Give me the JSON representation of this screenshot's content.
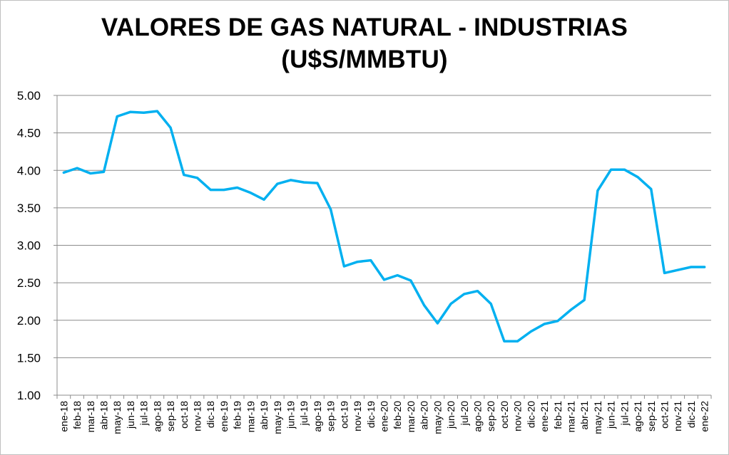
{
  "chart_data": {
    "type": "line",
    "title": "VALORES DE GAS NATURAL - INDUSTRIAS",
    "subtitle": "(U$S/MMBTU)",
    "xlabel": "",
    "ylabel": "",
    "ylim": [
      1.0,
      5.0
    ],
    "ytick_step": 0.5,
    "yticks": [
      "1.00",
      "1.50",
      "2.00",
      "2.50",
      "3.00",
      "3.50",
      "4.00",
      "4.50",
      "5.00"
    ],
    "grid": true,
    "legend": "none",
    "line_color": "#00b0f0",
    "categories": [
      "ene-18",
      "feb-18",
      "mar-18",
      "abr-18",
      "may-18",
      "jun-18",
      "jul-18",
      "ago-18",
      "sep-18",
      "oct-18",
      "nov-18",
      "dic-18",
      "ene-19",
      "feb-19",
      "mar-19",
      "abr-19",
      "may-19",
      "jun-19",
      "jul-19",
      "ago-19",
      "sep-19",
      "oct-19",
      "nov-19",
      "dic-19",
      "ene-20",
      "feb-20",
      "mar-20",
      "abr-20",
      "may-20",
      "jun-20",
      "jul-20",
      "ago-20",
      "sep-20",
      "oct-20",
      "nov-20",
      "dic-20",
      "ene-21",
      "feb-21",
      "mar-21",
      "abr-21",
      "may-21",
      "jun-21",
      "jul-21",
      "ago-21",
      "sep-21",
      "oct-21",
      "nov-21",
      "dic-21",
      "ene-22"
    ],
    "values": [
      3.97,
      4.03,
      3.96,
      3.98,
      4.72,
      4.78,
      4.77,
      4.79,
      4.57,
      3.94,
      3.9,
      3.74,
      3.74,
      3.77,
      3.7,
      3.61,
      3.82,
      3.87,
      3.84,
      3.83,
      3.48,
      2.72,
      2.78,
      2.8,
      2.54,
      2.6,
      2.53,
      2.2,
      1.96,
      2.22,
      2.35,
      2.39,
      2.22,
      1.72,
      1.72,
      1.85,
      1.95,
      1.99,
      2.14,
      2.27,
      3.73,
      4.01,
      4.01,
      3.91,
      3.75,
      2.63,
      2.67,
      2.71,
      2.71
    ]
  }
}
